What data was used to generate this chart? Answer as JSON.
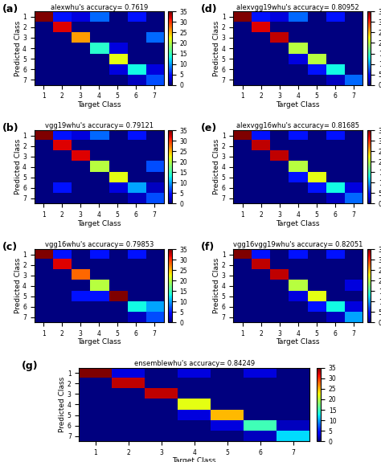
{
  "panels": [
    {
      "label": "(a)",
      "title": "alexwhu's accuracy= 0.7619",
      "matrix": [
        [
          35,
          5,
          3,
          8,
          0,
          5,
          0
        ],
        [
          0,
          32,
          0,
          0,
          0,
          0,
          0
        ],
        [
          0,
          0,
          26,
          0,
          0,
          0,
          8
        ],
        [
          0,
          0,
          0,
          14,
          3,
          0,
          0
        ],
        [
          0,
          0,
          0,
          0,
          22,
          0,
          0
        ],
        [
          0,
          0,
          0,
          0,
          3,
          13,
          3
        ],
        [
          0,
          0,
          0,
          0,
          0,
          2,
          7
        ]
      ]
    },
    {
      "label": "(b)",
      "title": "vgg19whu's accuracy= 0.79121",
      "matrix": [
        [
          35,
          5,
          3,
          8,
          0,
          5,
          0
        ],
        [
          0,
          32,
          0,
          0,
          0,
          0,
          0
        ],
        [
          0,
          0,
          32,
          0,
          0,
          0,
          0
        ],
        [
          0,
          0,
          0,
          20,
          0,
          0,
          7
        ],
        [
          0,
          0,
          0,
          0,
          22,
          0,
          0
        ],
        [
          0,
          5,
          0,
          0,
          3,
          10,
          2
        ],
        [
          0,
          0,
          0,
          0,
          0,
          2,
          7
        ]
      ]
    },
    {
      "label": "(c)",
      "title": "vgg16whu's accuracy= 0.79853",
      "matrix": [
        [
          35,
          5,
          0,
          5,
          0,
          5,
          0
        ],
        [
          0,
          32,
          0,
          0,
          0,
          0,
          0
        ],
        [
          0,
          0,
          28,
          0,
          0,
          0,
          0
        ],
        [
          0,
          0,
          0,
          20,
          0,
          0,
          0
        ],
        [
          0,
          0,
          5,
          5,
          35,
          0,
          0
        ],
        [
          0,
          0,
          0,
          0,
          0,
          13,
          10
        ],
        [
          0,
          0,
          0,
          0,
          0,
          2,
          7
        ]
      ]
    },
    {
      "label": "(d)",
      "title": "alexvgg19whu's accuracy= 0.80952",
      "matrix": [
        [
          35,
          5,
          3,
          8,
          0,
          5,
          0
        ],
        [
          0,
          32,
          0,
          0,
          0,
          0,
          0
        ],
        [
          0,
          0,
          33,
          0,
          0,
          0,
          0
        ],
        [
          0,
          0,
          0,
          20,
          0,
          0,
          0
        ],
        [
          0,
          0,
          0,
          3,
          20,
          0,
          0
        ],
        [
          0,
          0,
          0,
          0,
          5,
          13,
          0
        ],
        [
          0,
          0,
          0,
          0,
          0,
          2,
          8
        ]
      ]
    },
    {
      "label": "(e)",
      "title": "alexvgg16whu's accuracy= 0.81685",
      "matrix": [
        [
          35,
          5,
          0,
          5,
          0,
          5,
          0
        ],
        [
          0,
          33,
          0,
          0,
          0,
          0,
          0
        ],
        [
          0,
          0,
          33,
          0,
          0,
          0,
          0
        ],
        [
          0,
          0,
          0,
          20,
          0,
          0,
          0
        ],
        [
          0,
          0,
          0,
          5,
          22,
          0,
          0
        ],
        [
          0,
          0,
          0,
          0,
          5,
          13,
          3
        ],
        [
          0,
          0,
          0,
          0,
          0,
          2,
          8
        ]
      ]
    },
    {
      "label": "(f)",
      "title": "vgg16vgg19whu's accuracy= 0.82051",
      "matrix": [
        [
          35,
          5,
          0,
          5,
          0,
          5,
          0
        ],
        [
          0,
          33,
          0,
          0,
          0,
          0,
          0
        ],
        [
          0,
          0,
          33,
          0,
          0,
          0,
          0
        ],
        [
          0,
          0,
          0,
          20,
          0,
          0,
          3
        ],
        [
          0,
          0,
          0,
          3,
          22,
          0,
          0
        ],
        [
          0,
          0,
          0,
          0,
          5,
          13,
          3
        ],
        [
          0,
          0,
          0,
          0,
          0,
          2,
          10
        ]
      ]
    },
    {
      "label": "(g)",
      "title": "ensemblewhu's accuracy= 0.84249",
      "matrix": [
        [
          35,
          3,
          0,
          3,
          0,
          3,
          0
        ],
        [
          0,
          33,
          0,
          0,
          0,
          0,
          0
        ],
        [
          0,
          0,
          33,
          0,
          0,
          0,
          0
        ],
        [
          0,
          0,
          0,
          22,
          0,
          0,
          0
        ],
        [
          0,
          0,
          0,
          3,
          25,
          0,
          0
        ],
        [
          0,
          0,
          0,
          0,
          3,
          15,
          2
        ],
        [
          0,
          0,
          0,
          0,
          0,
          2,
          12
        ]
      ]
    }
  ],
  "cmap": "jet",
  "vmin": 0,
  "vmax": 35,
  "colorbar_ticks": [
    0,
    5,
    10,
    15,
    20,
    25,
    30,
    35
  ],
  "xlabel": "Target Class",
  "ylabel": "Predicted Class",
  "tick_labels": [
    "1",
    "2",
    "3",
    "4",
    "5",
    "6",
    "7"
  ],
  "background_color": "#ffffff",
  "title_fontsize": 6.0,
  "label_fontsize": 6.5,
  "tick_fontsize": 5.5,
  "panel_label_fontsize": 9,
  "colorbar_fontsize": 5.5
}
